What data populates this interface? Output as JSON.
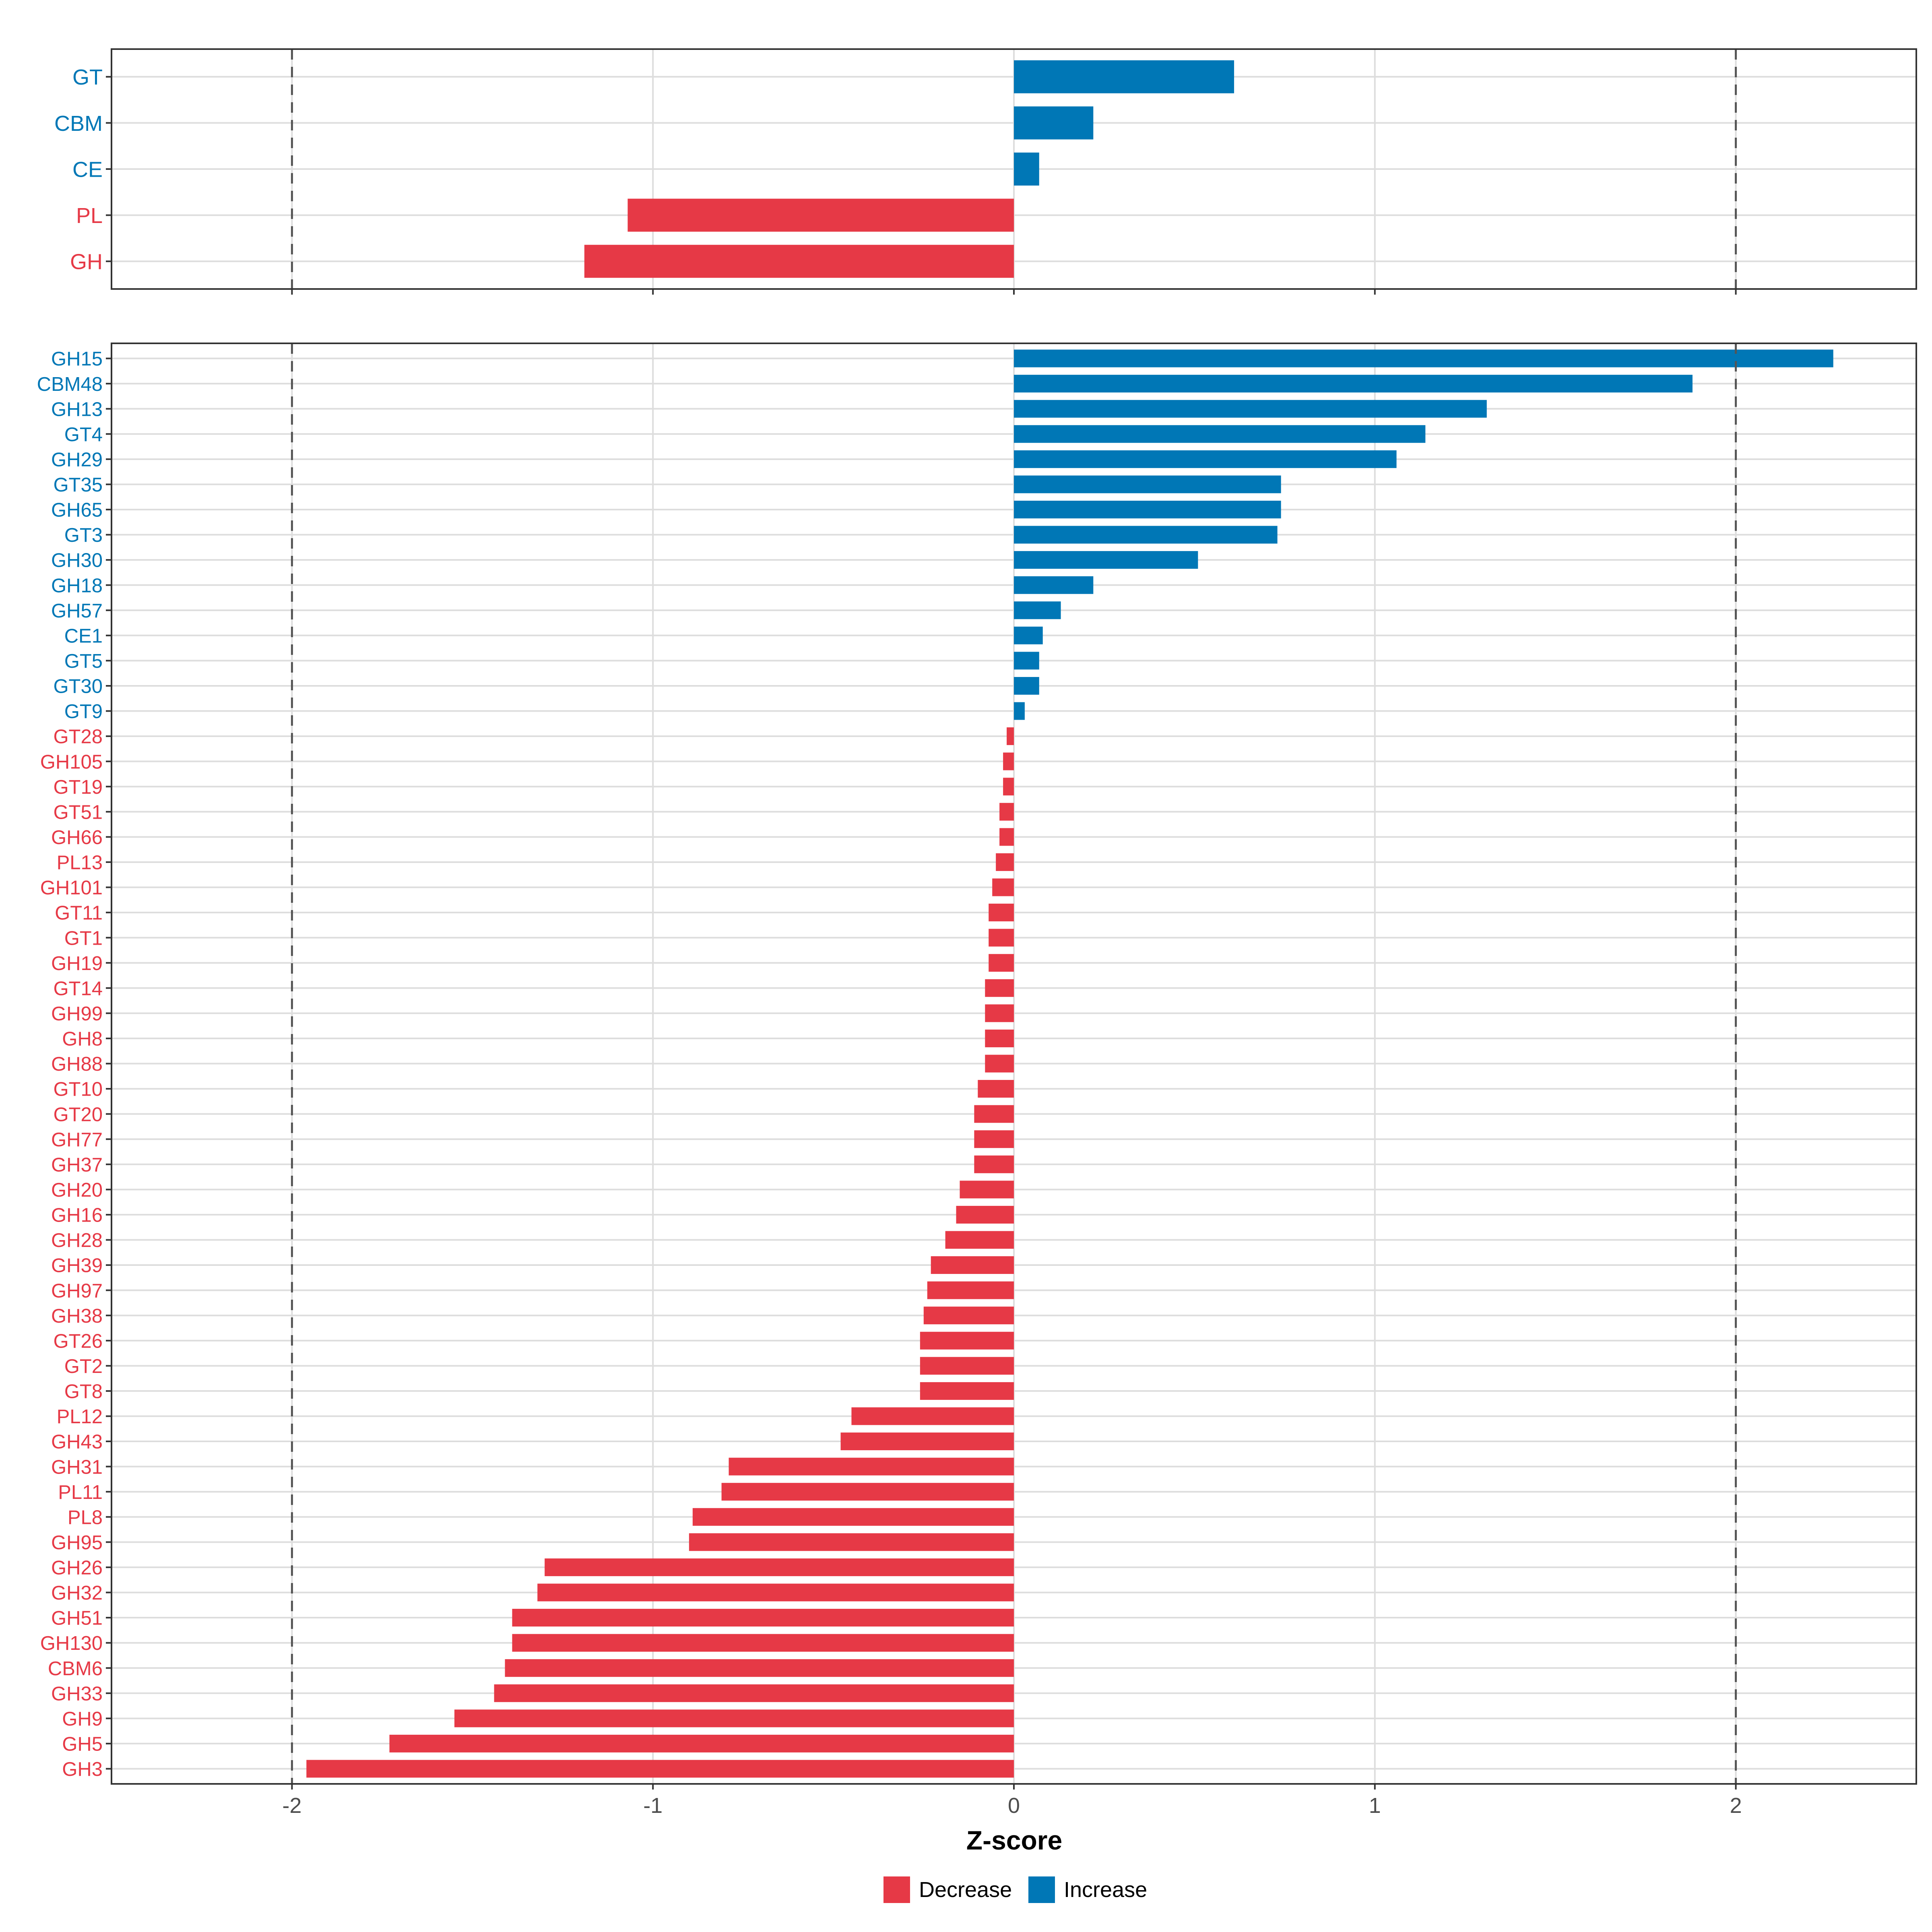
{
  "colors": {
    "decrease": "#E63946",
    "increase": "#0077B6",
    "grid": "#DDDDDD",
    "axis_text": "#4D4D4D",
    "panel_border": "#333333",
    "threshold_line": "#555555"
  },
  "chart_data": [
    {
      "type": "bar",
      "orientation": "horizontal",
      "panel": "top",
      "categories": [
        "GT",
        "CBM",
        "CE",
        "PL",
        "GH"
      ],
      "values": [
        0.61,
        0.22,
        0.07,
        -1.07,
        -1.19
      ],
      "xlim": [
        -2.5,
        2.5
      ],
      "xticks": [
        -2,
        -1,
        0,
        1,
        2
      ],
      "thresholds": [
        -2,
        2
      ]
    },
    {
      "type": "bar",
      "orientation": "horizontal",
      "panel": "bottom",
      "categories": [
        "GH15",
        "CBM48",
        "GH13",
        "GT4",
        "GH29",
        "GT35",
        "GH65",
        "GT3",
        "GH30",
        "GH18",
        "GH57",
        "CE1",
        "GT5",
        "GT30",
        "GT9",
        "GT28",
        "GH105",
        "GT19",
        "GT51",
        "GH66",
        "PL13",
        "GH101",
        "GT11",
        "GT1",
        "GH19",
        "GT14",
        "GH99",
        "GH8",
        "GH88",
        "GT10",
        "GT20",
        "GH77",
        "GH37",
        "GH20",
        "GH16",
        "GH28",
        "GH39",
        "GH97",
        "GH38",
        "GT26",
        "GT2",
        "GT8",
        "PL12",
        "GH43",
        "GH31",
        "PL11",
        "PL8",
        "GH95",
        "GH26",
        "GH32",
        "GH51",
        "GH130",
        "CBM6",
        "GH33",
        "GH9",
        "GH5",
        "GH3"
      ],
      "values": [
        2.27,
        1.88,
        1.31,
        1.14,
        1.06,
        0.74,
        0.74,
        0.73,
        0.51,
        0.22,
        0.13,
        0.08,
        0.07,
        0.07,
        0.03,
        -0.02,
        -0.03,
        -0.03,
        -0.04,
        -0.04,
        -0.05,
        -0.06,
        -0.07,
        -0.07,
        -0.07,
        -0.08,
        -0.08,
        -0.08,
        -0.08,
        -0.1,
        -0.11,
        -0.11,
        -0.11,
        -0.15,
        -0.16,
        -0.19,
        -0.23,
        -0.24,
        -0.25,
        -0.26,
        -0.26,
        -0.26,
        -0.45,
        -0.48,
        -0.79,
        -0.81,
        -0.89,
        -0.9,
        -1.3,
        -1.32,
        -1.39,
        -1.39,
        -1.41,
        -1.44,
        -1.55,
        -1.73,
        -1.96
      ],
      "xlim": [
        -2.5,
        2.5
      ],
      "xticks": [
        -2,
        -1,
        0,
        1,
        2
      ],
      "xtick_labels": [
        "-2",
        "-1",
        "0",
        "1",
        "2"
      ],
      "xlabel": "Z-score",
      "thresholds": [
        -2,
        2
      ]
    }
  ],
  "legend": {
    "position": "bottom",
    "items": [
      {
        "label": "Decrease",
        "color": "#E63946"
      },
      {
        "label": "Increase",
        "color": "#0077B6"
      }
    ]
  }
}
